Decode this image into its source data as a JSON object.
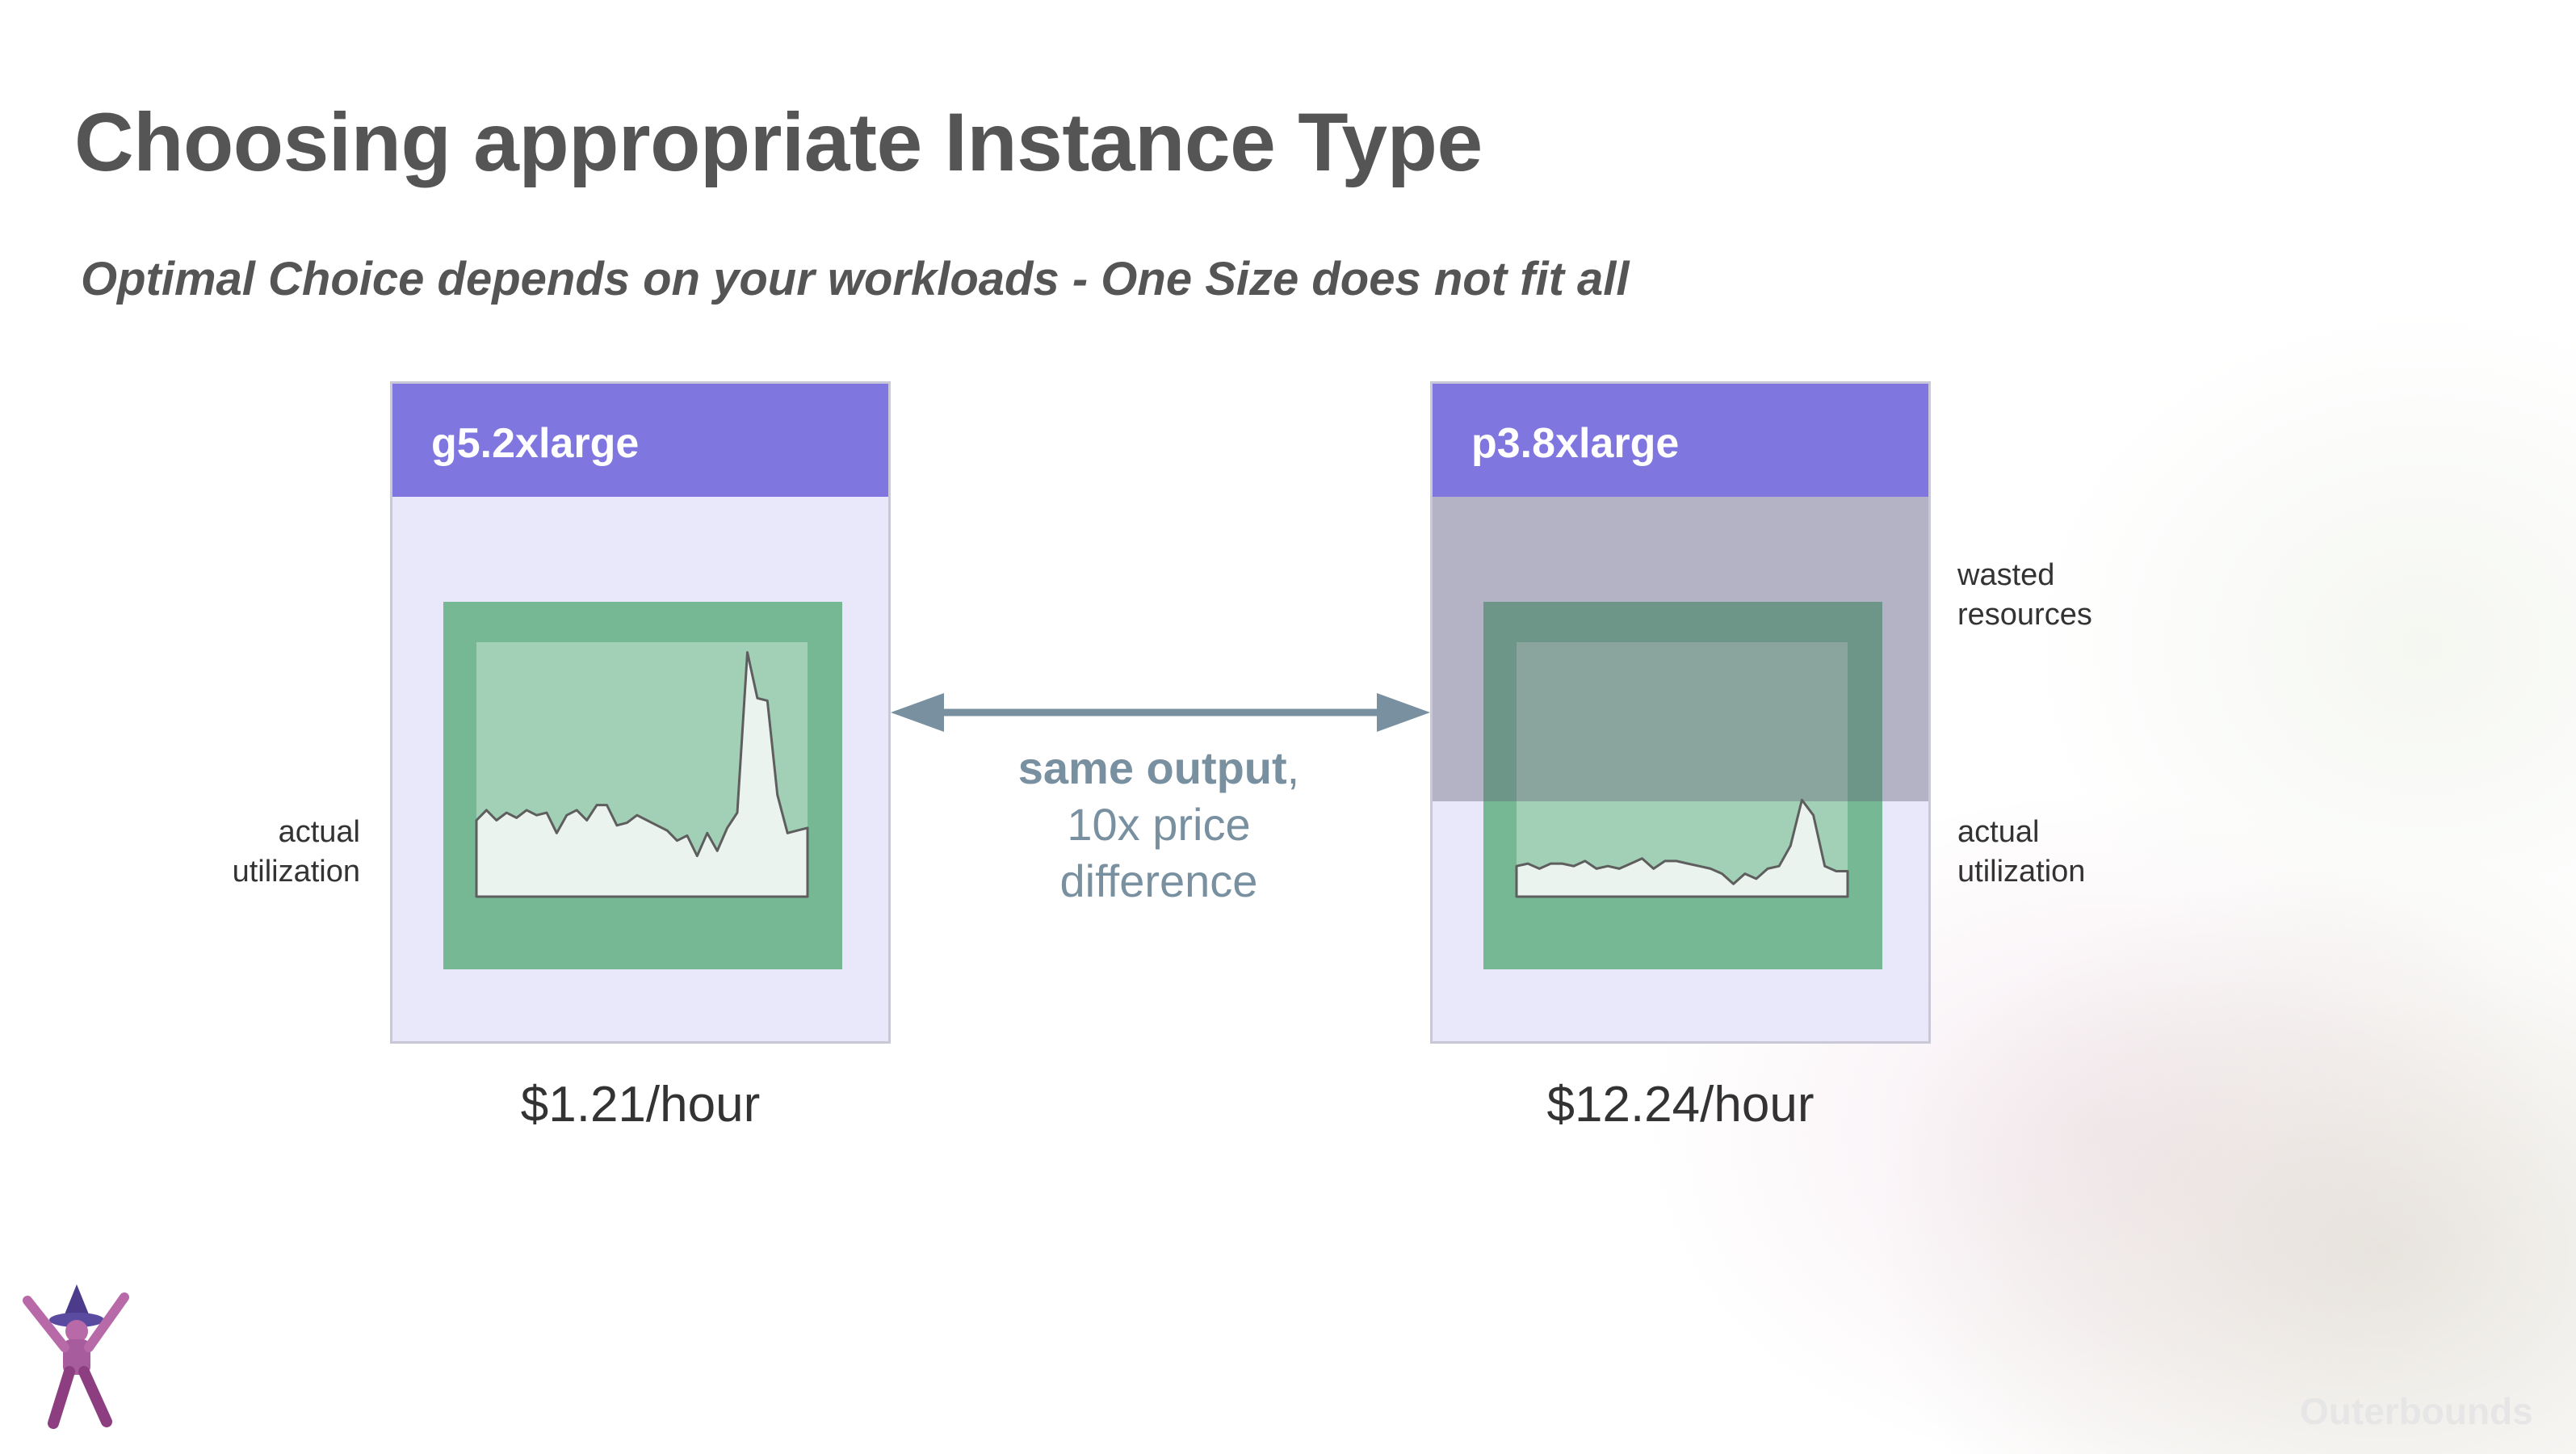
{
  "slide": {
    "title": "Choosing appropriate Instance Type",
    "subtitle": "Optimal Choice depends on your workloads - One Size does not fit all"
  },
  "instances": [
    {
      "name": "g5.2xlarge",
      "price": "$1.21/hour",
      "label": "actual\nutilization",
      "utilization_series": [
        0.3,
        0.34,
        0.3,
        0.33,
        0.31,
        0.34,
        0.32,
        0.33,
        0.25,
        0.32,
        0.34,
        0.3,
        0.36,
        0.36,
        0.28,
        0.29,
        0.32,
        0.3,
        0.28,
        0.26,
        0.22,
        0.24,
        0.16,
        0.25,
        0.18,
        0.27,
        0.33,
        0.96,
        0.78,
        0.77,
        0.4,
        0.25,
        0.26,
        0.27
      ]
    },
    {
      "name": "p3.8xlarge",
      "price": "$12.24/hour",
      "label_top": "wasted\nresources",
      "label_bottom": "actual\nutilization",
      "utilization_series": [
        0.12,
        0.13,
        0.11,
        0.13,
        0.13,
        0.12,
        0.14,
        0.11,
        0.12,
        0.11,
        0.13,
        0.15,
        0.11,
        0.14,
        0.14,
        0.13,
        0.12,
        0.11,
        0.09,
        0.05,
        0.09,
        0.07,
        0.11,
        0.12,
        0.2,
        0.38,
        0.32,
        0.12,
        0.1,
        0.1
      ]
    }
  ],
  "comparison": {
    "bold_text": "same output",
    "comma": ",",
    "line2": "10x price",
    "line3": "difference"
  },
  "colors": {
    "header": "#7f76e0",
    "box_fill": "#e9e8fb",
    "green_outer": "#76b893",
    "green_inner": "#a2d0b6",
    "arrow": "#7890a0",
    "waste": "#64647866"
  },
  "brand": "Outerbounds"
}
